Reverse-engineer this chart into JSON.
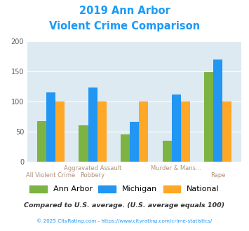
{
  "title_line1": "2019 Ann Arbor",
  "title_line2": "Violent Crime Comparison",
  "title_color": "#1b9af7",
  "groups": [
    {
      "ann_arbor": 68,
      "michigan": 115,
      "national": 100
    },
    {
      "ann_arbor": 61,
      "michigan": 123,
      "national": 100
    },
    {
      "ann_arbor": 46,
      "michigan": 66,
      "national": 100
    },
    {
      "ann_arbor": 35,
      "michigan": 112,
      "national": 100
    },
    {
      "ann_arbor": 149,
      "michigan": 170,
      "national": 100
    }
  ],
  "color_ann_arbor": "#7cb342",
  "color_michigan": "#2196f3",
  "color_national": "#ffa726",
  "ylim": [
    0,
    200
  ],
  "yticks": [
    0,
    50,
    100,
    150,
    200
  ],
  "plot_bg": "#deeaf1",
  "legend_labels": [
    "Ann Arbor",
    "Michigan",
    "National"
  ],
  "footnote1": "Compared to U.S. average. (U.S. average equals 100)",
  "footnote2": "© 2025 CityRating.com - https://www.cityrating.com/crime-statistics/",
  "footnote1_color": "#333333",
  "footnote2_color": "#2196f3",
  "label_color": "#b0907a",
  "bar_width": 0.22,
  "xlabel_top": [
    "",
    "Aggravated Assault",
    "",
    "Murder & Mans...",
    ""
  ],
  "xlabel_bot": [
    "All Violent Crime",
    "Robbery",
    "",
    "",
    "Rape"
  ]
}
